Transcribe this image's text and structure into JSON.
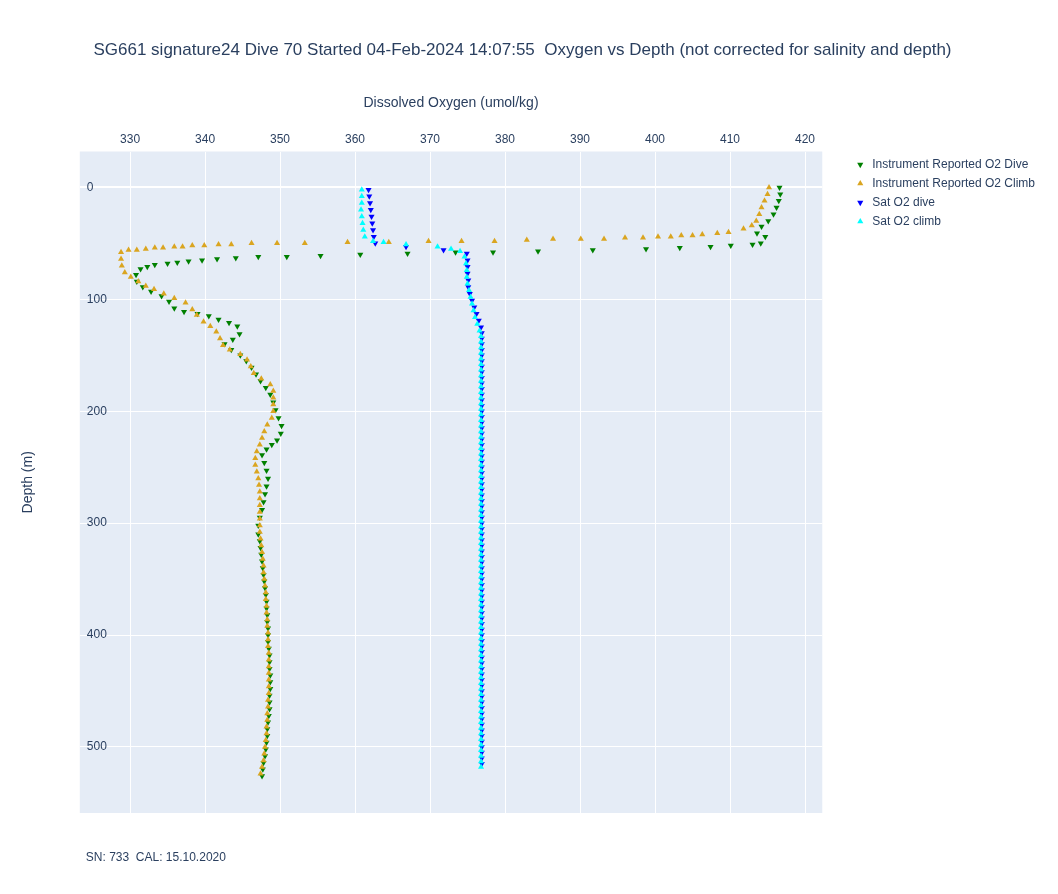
{
  "chart_data": {
    "type": "scatter",
    "title": "SG661 signature24 Dive 70 Started 04-Feb-2024 14:07:55  Oxygen vs Depth (not corrected for salinity and depth)",
    "xlabel": "Dissolved Oxygen (umol/kg)",
    "ylabel": "Depth (m)",
    "annotations": [
      "SN: 733  CAL: 15.10.2020"
    ],
    "xlim": [
      323.3,
      422.3
    ],
    "ylim": [
      559,
      -32
    ],
    "xticks": [
      330,
      340,
      350,
      360,
      370,
      380,
      390,
      400,
      410,
      420
    ],
    "yticks": [
      0,
      100,
      200,
      300,
      400,
      500
    ],
    "grid": true,
    "legend": "top right",
    "series": [
      {
        "name": "Instrument Reported O2 Dive",
        "color": "#008000",
        "marker": "triangle-down",
        "x": [
          416.6,
          416.7,
          416.5,
          416.2,
          415.8,
          415.1,
          414.2,
          413.6,
          414.7,
          414.1,
          413.0,
          410.1,
          407.4,
          403.3,
          398.8,
          391.7,
          384.4,
          378.4,
          373.4,
          367,
          360.7,
          355.4,
          350.9,
          347.1,
          344.1,
          341.6,
          339.6,
          337.8,
          336.3,
          335,
          333.3,
          332.3,
          331.4,
          330.8,
          330.9,
          331.7,
          332.8,
          334.2,
          335.2,
          335.9,
          337.2,
          339,
          340.5,
          341.8,
          343.2,
          344.3,
          344.6,
          343.7,
          342.6,
          343.5,
          344.7,
          345.5,
          346.2,
          346.8,
          347.4,
          348.1,
          348.7,
          349.1,
          349.4,
          349.8,
          350.2,
          350.1,
          349.6,
          348.9,
          348.2,
          347.6,
          347.9,
          348.2,
          348.4,
          348.2,
          348,
          347.8,
          347.6,
          347.3,
          347.1,
          347.1,
          347.3,
          347.4,
          347.5,
          347.6,
          347.7,
          347.8,
          347.9,
          348,
          348.1,
          348.2,
          348.2,
          348.3,
          348.3,
          348.4,
          348.4,
          348.4,
          348.5,
          348.6,
          348.6,
          348.6,
          348.7,
          348.7,
          348.7,
          348.6,
          348.6,
          348.6,
          348.5,
          348.4,
          348.3,
          348.3,
          348.2,
          348.1,
          348,
          347.8,
          347.7,
          347.6
        ],
        "values": [
          0,
          6,
          12,
          18,
          24,
          30,
          35,
          41,
          44,
          50,
          51,
          52,
          53,
          54,
          55,
          56,
          57,
          58,
          58,
          59,
          60,
          61,
          62,
          62,
          63,
          64,
          65,
          66,
          67,
          68,
          69,
          71,
          73,
          78,
          84,
          89,
          93,
          97,
          102,
          108,
          111,
          113,
          115,
          118,
          121,
          124,
          131,
          136,
          140,
          145,
          150,
          155,
          161,
          167,
          173,
          179,
          185,
          192,
          199,
          206,
          213,
          220,
          226,
          230,
          234,
          239,
          246,
          253,
          260,
          267,
          274,
          281,
          288,
          295,
          302,
          310,
          316,
          322,
          328,
          334,
          340,
          346,
          352,
          358,
          364,
          370,
          376,
          382,
          388,
          394,
          400,
          406,
          412,
          418,
          424,
          430,
          436,
          442,
          448,
          454,
          460,
          466,
          472,
          478,
          484,
          490,
          496,
          502,
          508,
          514,
          520,
          526
        ]
      },
      {
        "name": "Instrument Reported O2 Climb",
        "color": "#daa520",
        "marker": "triangle",
        "x": [
          415.2,
          415.0,
          414.6,
          414.2,
          413.9,
          413.5,
          412.9,
          411.8,
          409.8,
          408.3,
          406.3,
          405,
          403.5,
          402.1,
          400.4,
          398.4,
          396,
          393.2,
          390.1,
          386.4,
          382.9,
          378.6,
          374.2,
          369.8,
          364.5,
          359,
          353.3,
          349.6,
          346.2,
          343.5,
          341.8,
          339.9,
          338.3,
          337,
          335.9,
          334.4,
          333.3,
          332.1,
          330.9,
          329.8,
          328.8,
          328.8,
          328.9,
          329.3,
          330.1,
          331.1,
          332.1,
          333.2,
          334.5,
          335.9,
          337.4,
          338.3,
          338.9,
          339.8,
          340.7,
          341.5,
          342,
          342.4,
          343.3,
          344.7,
          345.6,
          346.1,
          346.5,
          347.5,
          348.7,
          349.1,
          349.1,
          349.1,
          349.1,
          348.9,
          348.3,
          347.9,
          347.6,
          347.3,
          346.9,
          346.7,
          346.7,
          346.9,
          347.1,
          347.2,
          347.3,
          347.3,
          347.3,
          347.3,
          347.3,
          347.3,
          347.3,
          347.4,
          347.5,
          347.6,
          347.7,
          347.8,
          347.8,
          347.9,
          348,
          348.1,
          348.1,
          348.2,
          348.2,
          348.3,
          348.3,
          348.4,
          348.4,
          348.4,
          348.5,
          348.5,
          348.5,
          348.5,
          348.5,
          348.5,
          348.5,
          348.4,
          348.4,
          348.3,
          348.3,
          348.2,
          348.2,
          348.1,
          348,
          347.9,
          347.8,
          347.6,
          347.4
        ],
        "values": [
          0,
          6,
          12,
          18,
          24,
          30,
          34,
          37,
          40,
          41,
          42,
          43,
          43,
          44,
          44,
          45,
          45,
          46,
          46,
          46,
          47,
          48,
          48,
          48,
          49,
          49,
          50,
          50,
          50,
          51,
          51,
          52,
          52,
          53,
          53,
          54,
          54,
          55,
          56,
          56,
          58,
          64,
          70,
          76,
          80,
          84,
          88,
          91,
          95,
          99,
          103,
          109,
          114,
          120,
          124,
          129,
          135,
          141,
          145,
          149,
          154,
          160,
          166,
          171,
          176,
          182,
          188,
          194,
          200,
          206,
          212,
          218,
          224,
          230,
          236,
          242,
          248,
          254,
          260,
          266,
          272,
          278,
          284,
          290,
          296,
          302,
          308,
          314,
          320,
          326,
          332,
          338,
          344,
          350,
          356,
          362,
          368,
          374,
          380,
          386,
          392,
          398,
          404,
          410,
          416,
          422,
          428,
          434,
          440,
          446,
          452,
          458,
          464,
          470,
          476,
          482,
          488,
          494,
          500,
          506,
          512,
          518,
          524
        ]
      },
      {
        "name": "Sat O2 dive",
        "color": "#0000ff",
        "marker": "triangle-down",
        "x": [
          361.8,
          361.9,
          362,
          362.1,
          362.2,
          362.3,
          362.4,
          362.5,
          362.7,
          366.8,
          371.8,
          374.9,
          375,
          375,
          375,
          375.1,
          375.1,
          375.3,
          375.6,
          375.9,
          376.2,
          376.5,
          376.8,
          376.9,
          376.9,
          376.9,
          376.9,
          376.9,
          376.9,
          376.9,
          376.9,
          376.9,
          376.9,
          376.9,
          376.9,
          376.9,
          376.9,
          376.9,
          376.9,
          376.9,
          376.9,
          376.9,
          376.9,
          376.9,
          376.9,
          376.9,
          376.9,
          376.9,
          376.9,
          376.9,
          376.9,
          376.9,
          376.9,
          376.9,
          376.9,
          376.9,
          376.9,
          376.9,
          376.9,
          376.9,
          376.9,
          376.9,
          376.9,
          376.9,
          376.9,
          376.9,
          376.9,
          376.9,
          376.9,
          376.9,
          376.9,
          376.9,
          376.9,
          376.9,
          376.9,
          376.9,
          376.9,
          376.9,
          376.9,
          376.9,
          376.9,
          376.9,
          376.9,
          376.9,
          376.9,
          376.9,
          376.9,
          376.9,
          376.9,
          376.9,
          376.9,
          376.9,
          376.9,
          376.9,
          376.9,
          376.9,
          376.9,
          376.9,
          376.9,
          376.9,
          376.9
        ],
        "values": [
          2,
          8,
          14,
          20,
          26,
          32,
          38,
          44,
          50,
          53,
          56,
          59,
          65,
          71,
          77,
          83,
          89,
          95,
          101,
          107,
          113,
          119,
          125,
          130,
          135,
          140,
          145,
          150,
          155,
          160,
          165,
          170,
          175,
          180,
          185,
          190,
          195,
          200,
          205,
          210,
          215,
          220,
          225,
          230,
          235,
          240,
          245,
          250,
          255,
          260,
          265,
          270,
          275,
          280,
          285,
          290,
          295,
          300,
          305,
          310,
          315,
          320,
          325,
          330,
          335,
          340,
          345,
          350,
          355,
          360,
          365,
          370,
          375,
          380,
          385,
          390,
          395,
          400,
          405,
          410,
          415,
          420,
          425,
          430,
          435,
          440,
          445,
          450,
          455,
          460,
          465,
          470,
          475,
          480,
          485,
          490,
          495,
          500,
          505,
          510,
          515
        ]
      },
      {
        "name": "Sat O2 climb",
        "color": "#00ffff",
        "marker": "triangle",
        "x": [
          360.9,
          360.9,
          360.9,
          360.8,
          360.9,
          361,
          361.1,
          361.3,
          362.4,
          363.8,
          366.8,
          371,
          372.8,
          374,
          374.6,
          374.8,
          374.9,
          374.9,
          375,
          375.2,
          375.4,
          375.6,
          375.8,
          376,
          376.3,
          376.6,
          376.8,
          376.8,
          376.8,
          376.8,
          376.8,
          376.8,
          376.8,
          376.8,
          376.8,
          376.8,
          376.8,
          376.8,
          376.8,
          376.8,
          376.8,
          376.8,
          376.8,
          376.8,
          376.8,
          376.8,
          376.8,
          376.8,
          376.8,
          376.8,
          376.8,
          376.8,
          376.8,
          376.8,
          376.8,
          376.8,
          376.8,
          376.8,
          376.8,
          376.8,
          376.8,
          376.8,
          376.8,
          376.8,
          376.8,
          376.8,
          376.8,
          376.8,
          376.8,
          376.8,
          376.8,
          376.8,
          376.8,
          376.8,
          376.8,
          376.8,
          376.8,
          376.8,
          376.8,
          376.8,
          376.8,
          376.8,
          376.8,
          376.8,
          376.8,
          376.8,
          376.8,
          376.8,
          376.8,
          376.8,
          376.8,
          376.8,
          376.8,
          376.8,
          376.8,
          376.8,
          376.8,
          376.8,
          376.8,
          376.8,
          376.8,
          376.8,
          376.8,
          376.8
        ],
        "values": [
          2,
          8,
          14,
          20,
          26,
          32,
          38,
          44,
          48,
          49,
          51,
          53,
          55,
          57,
          62,
          68,
          74,
          80,
          86,
          92,
          98,
          104,
          110,
          116,
          122,
          128,
          133,
          138,
          143,
          148,
          153,
          158,
          163,
          168,
          173,
          178,
          183,
          188,
          193,
          198,
          203,
          208,
          213,
          218,
          223,
          228,
          233,
          238,
          243,
          248,
          253,
          258,
          263,
          268,
          273,
          278,
          283,
          288,
          293,
          298,
          303,
          308,
          313,
          318,
          323,
          328,
          333,
          338,
          343,
          348,
          353,
          358,
          363,
          368,
          373,
          378,
          383,
          388,
          393,
          398,
          403,
          408,
          413,
          418,
          423,
          428,
          433,
          438,
          443,
          448,
          453,
          458,
          463,
          468,
          473,
          478,
          483,
          488,
          493,
          498,
          503,
          508,
          513,
          518
        ]
      }
    ]
  }
}
